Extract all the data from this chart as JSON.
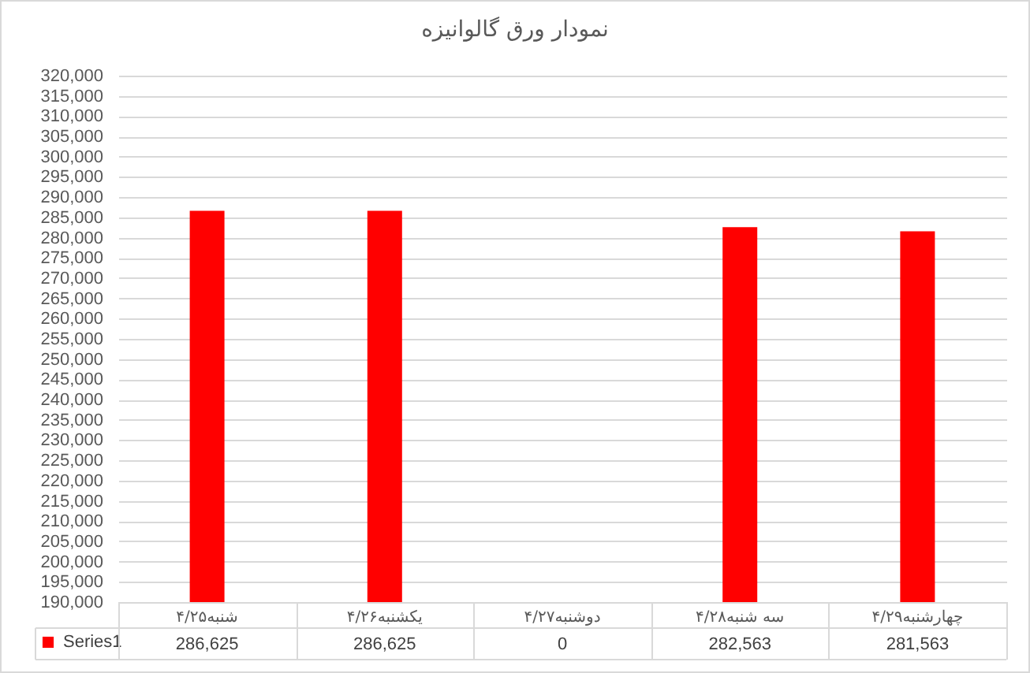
{
  "chart_data": {
    "type": "bar",
    "title": "نمودار ورق گالوانیزه",
    "categories": [
      "شنبه۴/۲۵",
      "یکشنبه۴/۲۶",
      "دوشنبه۴/۲۷",
      "سه شنبه۴/۲۸",
      "چهارشنبه۴/۲۹"
    ],
    "series": [
      {
        "name": "Series1",
        "color": "#ff0000",
        "values": [
          286625,
          286625,
          null,
          282563,
          281563
        ],
        "value_labels": [
          "286,625",
          "286,625",
          "0",
          "282,563",
          "281,563"
        ]
      }
    ],
    "ylim": [
      190000,
      320000
    ],
    "yticks": [
      {
        "value": 190000,
        "label": "190,000"
      },
      {
        "value": 195000,
        "label": "195,000"
      },
      {
        "value": 200000,
        "label": "200,000"
      },
      {
        "value": 205000,
        "label": "205,000"
      },
      {
        "value": 210000,
        "label": "210,000"
      },
      {
        "value": 215000,
        "label": "215,000"
      },
      {
        "value": 220000,
        "label": "220,000"
      },
      {
        "value": 225000,
        "label": "225,000"
      },
      {
        "value": 230000,
        "label": "230,000"
      },
      {
        "value": 235000,
        "label": "235,000"
      },
      {
        "value": 240000,
        "label": "240,000"
      },
      {
        "value": 245000,
        "label": "245,000"
      },
      {
        "value": 250000,
        "label": "250,000"
      },
      {
        "value": 255000,
        "label": "255,000"
      },
      {
        "value": 260000,
        "label": "260,000"
      },
      {
        "value": 265000,
        "label": "265,000"
      },
      {
        "value": 270000,
        "label": "270,000"
      },
      {
        "value": 275000,
        "label": "275,000"
      },
      {
        "value": 280000,
        "label": "280,000"
      },
      {
        "value": 285000,
        "label": "285,000"
      },
      {
        "value": 290000,
        "label": "290,000"
      },
      {
        "value": 295000,
        "label": "295,000"
      },
      {
        "value": 300000,
        "label": "300,000"
      },
      {
        "value": 305000,
        "label": "305,000"
      },
      {
        "value": 310000,
        "label": "310,000"
      },
      {
        "value": 315000,
        "label": "315,000"
      },
      {
        "value": 320000,
        "label": "320,000"
      }
    ],
    "grid": "y",
    "legend": "bottom left"
  }
}
